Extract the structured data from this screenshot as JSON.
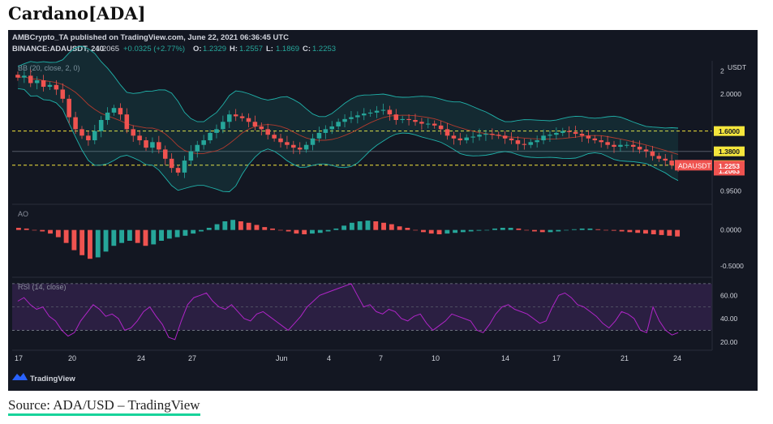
{
  "article": {
    "title": "Cardano[ADA]",
    "source": "Source: ADA/USD – TradingView"
  },
  "header": {
    "line1": "AMBCrypto_TA published on TradingView.com, June 22, 2021 06:36:45 UTC",
    "symbol": "BINANCE:ADAUSDT, 240",
    "price": "1.2065",
    "change": "+0.0325 (+2.77%)",
    "ohlc": [
      {
        "k": "O:",
        "v": "1.2329"
      },
      {
        "k": "H:",
        "v": "1.2557"
      },
      {
        "k": "L:",
        "v": "1.1869"
      },
      {
        "k": "C:",
        "v": "1.2253"
      }
    ]
  },
  "colors": {
    "bg": "#131722",
    "up": "#26a69a",
    "down": "#ef5350",
    "bb": "#20b2aa",
    "basis": "#b03a2e",
    "level": "#f5e63c",
    "rsi": "#b025c8",
    "rsi_band": "#4a2a6a",
    "price_tag": "#ef5350"
  },
  "chart_data": [
    {
      "type": "candlestick",
      "title": "",
      "indicator_label": "BB (20, close, 2, 0)",
      "currency": "USDT",
      "y_ticks": [
        "2",
        "2.0000",
        "0.9500"
      ],
      "y_tick_values": [
        2.25,
        2.0,
        0.95
      ],
      "ylim": [
        0.85,
        2.3
      ],
      "x_tick_labels": [
        "17",
        "20",
        "24",
        "27",
        "Jun",
        "4",
        "7",
        "10",
        "14",
        "17",
        "21",
        "24"
      ],
      "levels": [
        {
          "label": "1.6000",
          "value": 1.6,
          "style": "dashed"
        },
        {
          "label": "1.3800",
          "value": 1.38,
          "style": "solid-dim"
        },
        {
          "label": "1.2300",
          "value": 1.23,
          "style": "dashed"
        },
        {
          "label": "1.2063",
          "value": 1.2063,
          "style": "tag"
        }
      ],
      "last_price": {
        "label": "ADAUSDT",
        "value": "1.2253"
      },
      "closes": [
        2.18,
        2.2,
        2.12,
        2.15,
        2.08,
        2.1,
        2.05,
        1.95,
        1.75,
        1.62,
        1.55,
        1.5,
        1.6,
        1.72,
        1.8,
        1.85,
        1.78,
        1.62,
        1.55,
        1.5,
        1.42,
        1.48,
        1.4,
        1.3,
        1.2,
        1.15,
        1.28,
        1.38,
        1.45,
        1.5,
        1.58,
        1.62,
        1.7,
        1.78,
        1.76,
        1.74,
        1.7,
        1.65,
        1.62,
        1.56,
        1.52,
        1.48,
        1.45,
        1.42,
        1.4,
        1.45,
        1.52,
        1.58,
        1.62,
        1.65,
        1.7,
        1.73,
        1.75,
        1.77,
        1.79,
        1.8,
        1.82,
        1.83,
        1.78,
        1.72,
        1.73,
        1.72,
        1.7,
        1.68,
        1.68,
        1.66,
        1.62,
        1.55,
        1.52,
        1.5,
        1.53,
        1.54,
        1.56,
        1.57,
        1.56,
        1.55,
        1.52,
        1.5,
        1.46,
        1.45,
        1.48,
        1.5,
        1.55,
        1.56,
        1.58,
        1.6,
        1.59,
        1.57,
        1.55,
        1.52,
        1.5,
        1.48,
        1.45,
        1.43,
        1.45,
        1.45,
        1.43,
        1.4,
        1.38,
        1.33,
        1.3,
        1.28,
        1.23,
        1.2253
      ]
    },
    {
      "type": "bar",
      "indicator_label": "AO",
      "y_ticks": [
        "0.0000",
        "-0.5000"
      ],
      "y_tick_values": [
        0,
        -0.5
      ],
      "ylim": [
        -0.6,
        0.3
      ],
      "values": [
        0.03,
        0.02,
        0.0,
        -0.02,
        -0.05,
        -0.1,
        -0.18,
        -0.28,
        -0.35,
        -0.4,
        -0.38,
        -0.3,
        -0.22,
        -0.18,
        -0.15,
        -0.18,
        -0.22,
        -0.2,
        -0.15,
        -0.12,
        -0.1,
        -0.08,
        -0.05,
        -0.02,
        0.03,
        0.08,
        0.12,
        0.14,
        0.12,
        0.1,
        0.07,
        0.04,
        0.02,
        0.0,
        -0.02,
        -0.05,
        -0.06,
        -0.05,
        -0.04,
        -0.02,
        0.02,
        0.06,
        0.1,
        0.12,
        0.13,
        0.12,
        0.1,
        0.08,
        0.05,
        0.03,
        0.0,
        -0.03,
        -0.05,
        -0.06,
        -0.05,
        -0.04,
        -0.03,
        -0.02,
        -0.01,
        0.0,
        0.02,
        0.03,
        0.03,
        0.02,
        0.0,
        -0.02,
        -0.03,
        -0.03,
        -0.02,
        0.0,
        0.01,
        0.02,
        0.02,
        0.01,
        0.0,
        -0.01,
        -0.02,
        -0.03,
        -0.04,
        -0.05,
        -0.06,
        -0.07,
        -0.08,
        -0.09
      ]
    },
    {
      "type": "line",
      "indicator_label": "RSI (14, close)",
      "y_ticks": [
        "60.00",
        "40.00",
        "20.00"
      ],
      "y_tick_values": [
        60,
        40,
        20
      ],
      "band": [
        30,
        70
      ],
      "ylim": [
        15,
        72
      ],
      "values": [
        55,
        58,
        52,
        48,
        50,
        42,
        38,
        30,
        25,
        28,
        38,
        45,
        52,
        48,
        42,
        44,
        40,
        30,
        32,
        38,
        46,
        50,
        42,
        35,
        24,
        22,
        38,
        52,
        58,
        60,
        62,
        55,
        50,
        48,
        52,
        46,
        40,
        38,
        44,
        46,
        42,
        38,
        34,
        30,
        36,
        42,
        50,
        55,
        60,
        62,
        64,
        66,
        68,
        70,
        60,
        50,
        52,
        46,
        44,
        48,
        46,
        40,
        38,
        42,
        44,
        36,
        30,
        34,
        38,
        44,
        42,
        40,
        38,
        30,
        28,
        35,
        44,
        50,
        52,
        48,
        46,
        44,
        40,
        36,
        38,
        50,
        60,
        62,
        58,
        52,
        50,
        46,
        42,
        36,
        32,
        38,
        46,
        44,
        40,
        30,
        28,
        50,
        38,
        30,
        26,
        28
      ]
    }
  ],
  "branding": {
    "name": "TradingView"
  }
}
